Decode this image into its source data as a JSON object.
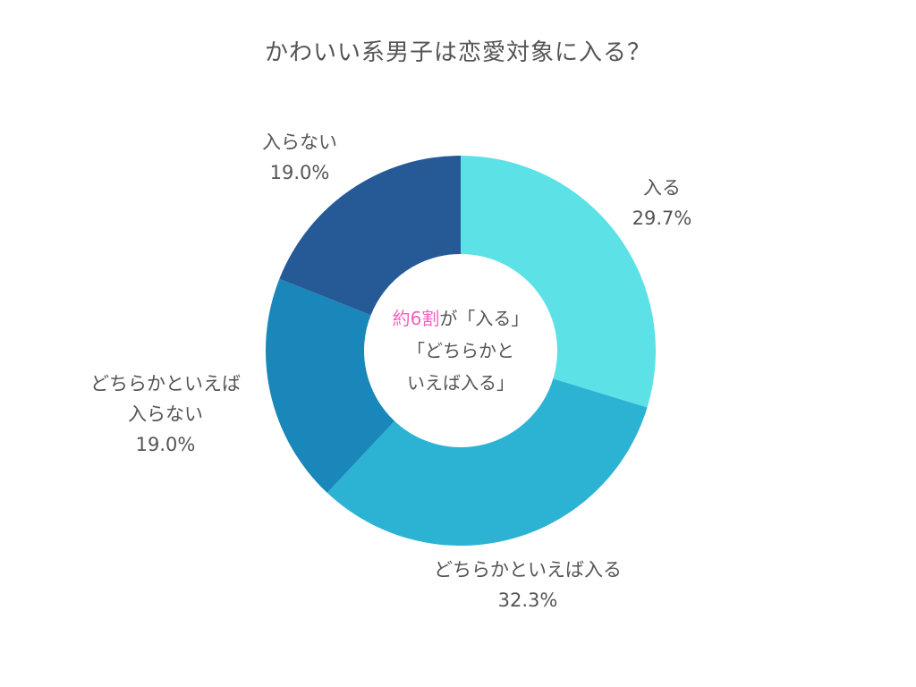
{
  "title": "かわいい系男子は恋愛対象に入る？",
  "center": {
    "highlight": "約6割",
    "line1_rest": "が「入る」",
    "line2": "「どちらかと",
    "line3": "いえば入る」",
    "highlight_color": "#f55fc0"
  },
  "labels": {
    "0": {
      "name": "入る",
      "pct": "29.7%"
    },
    "1": {
      "name": "どちらかといえば入る",
      "pct": "32.3%"
    },
    "2": {
      "name_line1": "どちらかといえば",
      "name_line2": "入らない",
      "pct": "19.0%"
    },
    "3": {
      "name": "入らない",
      "pct": "19.0%"
    }
  },
  "chart_data": {
    "type": "pie",
    "variant": "donut",
    "title": "かわいい系男子は恋愛対象に入る？",
    "categories": [
      "入る",
      "どちらかといえば入る",
      "どちらかといえば入らない",
      "入らない"
    ],
    "values": [
      29.7,
      32.3,
      19.0,
      19.0
    ],
    "unit": "%",
    "colors": [
      "#5ce1e6",
      "#2cb3d4",
      "#1a87ba",
      "#265a97"
    ],
    "start_angle": "12 o'clock, clockwise",
    "center_annotation": "約6割が「入る」「どちらかといえば入る」",
    "legend": "none (direct labels)"
  }
}
